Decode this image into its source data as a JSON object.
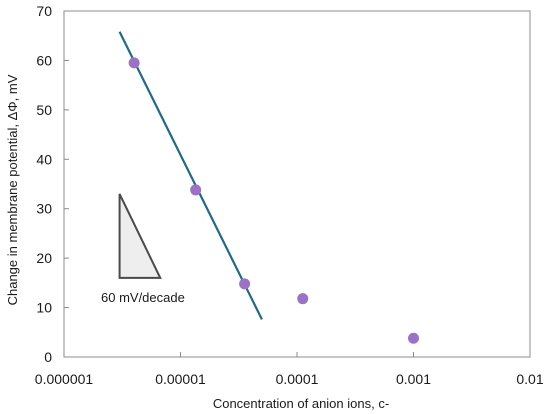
{
  "chart_data": {
    "type": "scatter",
    "title": "",
    "xlabel": "Concentration of anion ions, c-",
    "ylabel": "Change in membrane potential, ΔΦ, mV",
    "x_scale": "log",
    "xlim": [
      1e-06,
      0.01
    ],
    "ylim": [
      0,
      70
    ],
    "x_ticks": [
      1e-06,
      1e-05,
      0.0001,
      0.001,
      0.01
    ],
    "x_tick_labels": [
      "0.000001",
      "0.00001",
      "0.0001",
      "0.001",
      "0.01"
    ],
    "y_ticks": [
      0,
      10,
      20,
      30,
      40,
      50,
      60,
      70
    ],
    "y_tick_labels": [
      "0",
      "10",
      "20",
      "30",
      "40",
      "50",
      "60",
      "70"
    ],
    "grid": false,
    "legend": "none",
    "series": [
      {
        "points": [
          {
            "x": 4e-06,
            "y": 59.5
          },
          {
            "x": 1.35e-05,
            "y": 33.8
          },
          {
            "x": 3.55e-05,
            "y": 14.8
          },
          {
            "x": 0.000112,
            "y": 11.8
          },
          {
            "x": 0.001,
            "y": 3.8
          }
        ],
        "color": "#9b72c6"
      }
    ],
    "fit_line": {
      "from": {
        "x": 3e-06,
        "y": 65.8
      },
      "to": {
        "x": 5e-05,
        "y": 7.6
      },
      "color": "#1e6a8a"
    },
    "slope_triangle": {
      "apex": {
        "x": 3e-06,
        "y": 33
      },
      "base_left": {
        "x": 3e-06,
        "y": 16
      },
      "base_right": {
        "x": 6.7e-06,
        "y": 16
      },
      "label": "60 mV/decade"
    }
  }
}
